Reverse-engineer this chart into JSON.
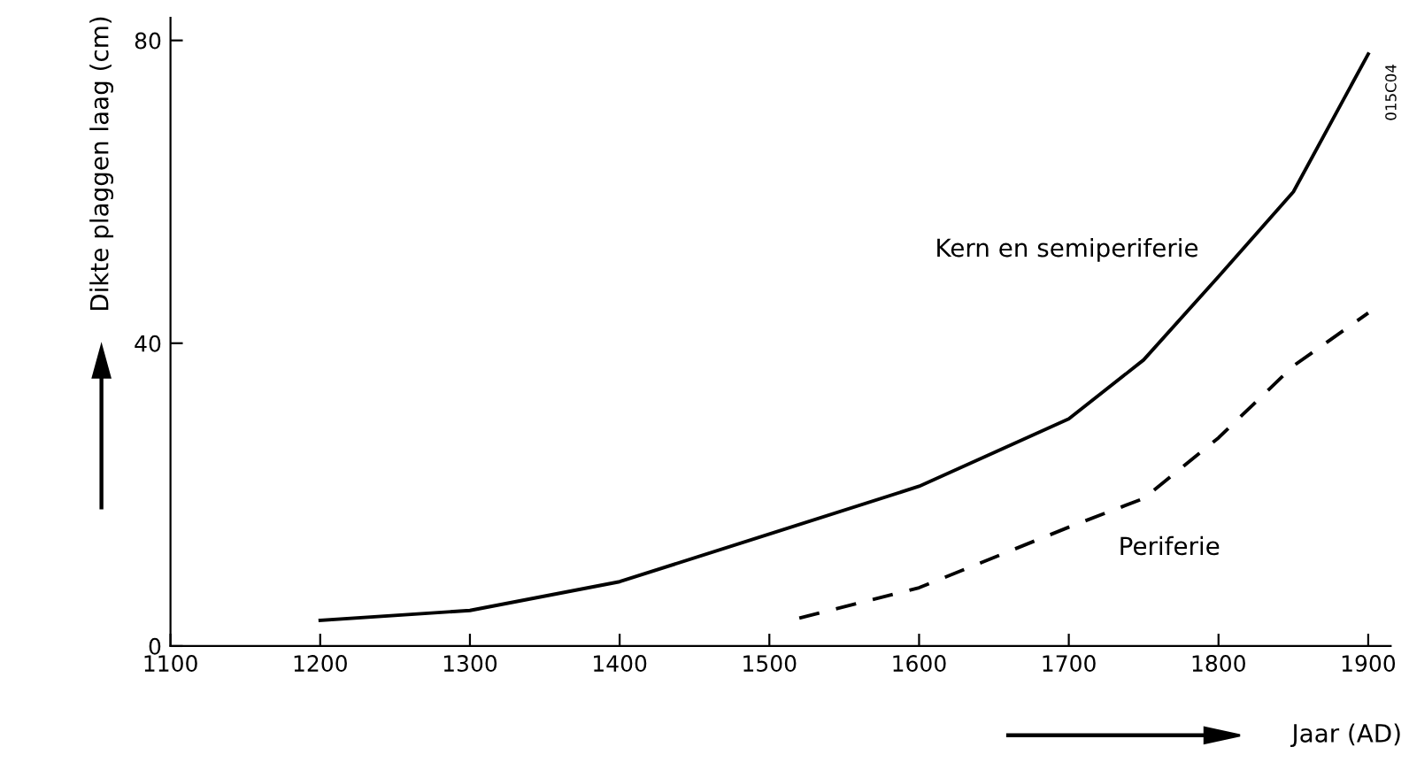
{
  "chart_data": {
    "type": "line",
    "xlabel": "Jaar (AD)",
    "ylabel": "Dikte plaggen laag (cm)",
    "xlim": [
      1100,
      1915
    ],
    "xticks": [
      1100,
      1200,
      1300,
      1400,
      1500,
      1600,
      1700,
      1800,
      1900
    ],
    "ylim": [
      0,
      83
    ],
    "yticks": [
      0,
      40,
      80
    ],
    "grid": false,
    "legend": false,
    "marker": "none",
    "annotations": [
      "015C04"
    ],
    "series": [
      {
        "name": "Kern en semiperiferie",
        "color": "#000000",
        "line_style": "solid",
        "x": [
          1200,
          1300,
          1400,
          1500,
          1600,
          1700,
          1750,
          1800,
          1850,
          1900
        ],
        "values": [
          3.4,
          4.7,
          8.5,
          14.8,
          21.1,
          30,
          37.8,
          48.8,
          60,
          78.2
        ]
      },
      {
        "name": "Periferie",
        "color": "#000000",
        "line_style": "dashed",
        "x": [
          1520,
          1600,
          1700,
          1750,
          1800,
          1850,
          1900
        ],
        "values": [
          3.7,
          7.7,
          15.7,
          19.5,
          27.5,
          37,
          44
        ]
      }
    ]
  }
}
